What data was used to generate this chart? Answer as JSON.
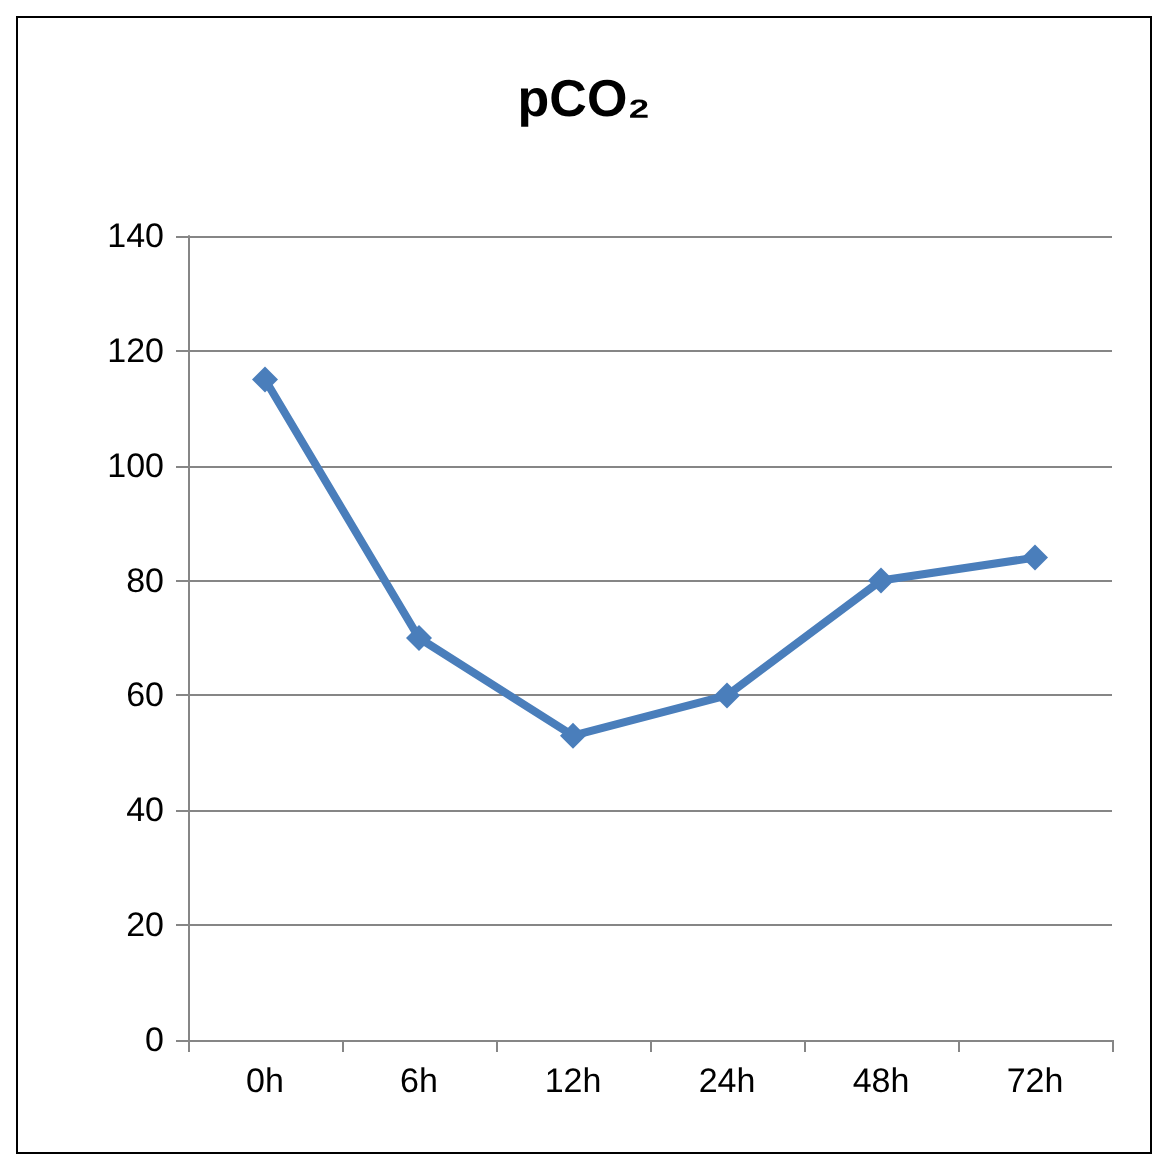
{
  "chart_data": {
    "type": "line",
    "title": "pCO₂",
    "categories": [
      "0h",
      "6h",
      "12h",
      "24h",
      "48h",
      "72h"
    ],
    "series": [
      {
        "color": "#4a7ebb",
        "values": [
          115,
          70,
          53,
          60,
          80,
          84
        ]
      }
    ],
    "ylim": [
      0,
      140
    ],
    "yticks": [
      0,
      20,
      40,
      60,
      80,
      100,
      120,
      140
    ],
    "grid": "y",
    "marker": "diamond",
    "line_style": "solid"
  }
}
